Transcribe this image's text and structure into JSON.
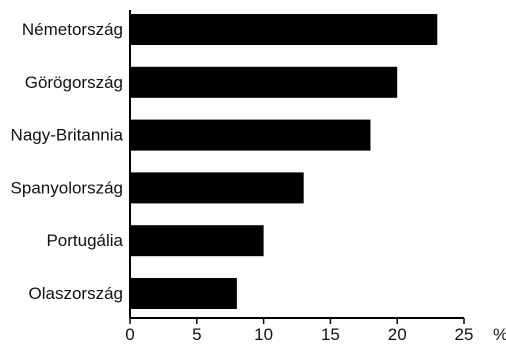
{
  "chart_data": {
    "type": "bar",
    "orientation": "horizontal",
    "categories": [
      "Németország",
      "Görögország",
      "Nagy-Britannia",
      "Spanyolország",
      "Portugália",
      "Olaszország"
    ],
    "values": [
      23,
      20,
      18,
      13,
      10,
      8
    ],
    "x_ticks": [
      "0",
      "5",
      "10",
      "15",
      "20",
      "25"
    ],
    "x_unit": "%",
    "xlim": [
      0,
      25
    ],
    "bar_color": "#000000",
    "grid": false,
    "legend": "none"
  }
}
